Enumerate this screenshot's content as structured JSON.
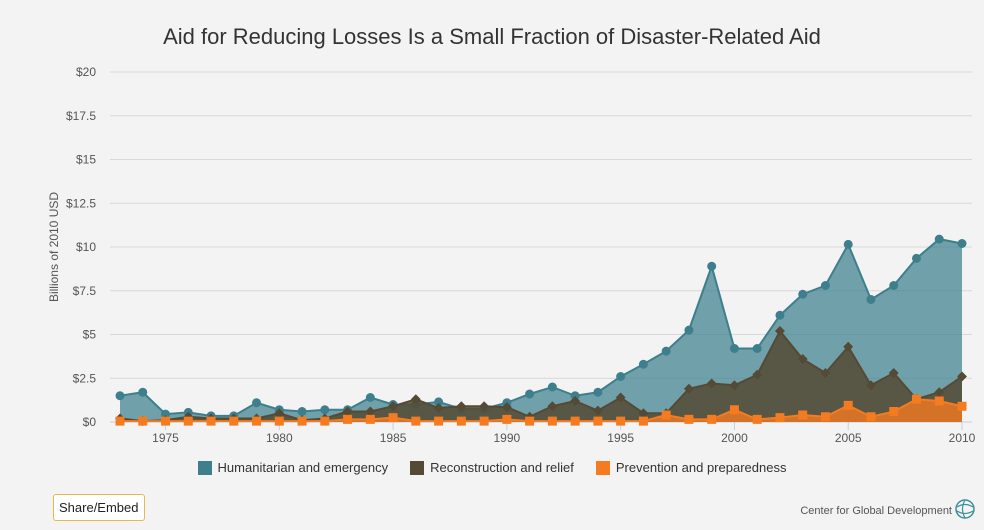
{
  "chart_data": {
    "type": "area",
    "title": "Aid for Reducing Losses Is a Small Fraction of Disaster-Related Aid",
    "ylabel": "Billions of 2010 USD",
    "xlabel": "",
    "ylim": [
      0,
      20
    ],
    "yticks": [
      "$0",
      "$2.5",
      "$5",
      "$7.5",
      "$10",
      "$12.5",
      "$15",
      "$17.5",
      "$20"
    ],
    "xticks": [
      "1975",
      "1980",
      "1985",
      "1990",
      "1995",
      "2000",
      "2005",
      "2010"
    ],
    "grid": true,
    "legend": "bottom",
    "x": [
      1973,
      1974,
      1975,
      1976,
      1977,
      1978,
      1979,
      1980,
      1981,
      1982,
      1983,
      1984,
      1985,
      1986,
      1987,
      1988,
      1989,
      1990,
      1991,
      1992,
      1993,
      1994,
      1995,
      1996,
      1997,
      1998,
      1999,
      2000,
      2001,
      2002,
      2003,
      2004,
      2005,
      2006,
      2007,
      2008,
      2009,
      2010
    ],
    "series": [
      {
        "name": "Humanitarian and emergency",
        "color": "#3d7f8c",
        "values": [
          1.5,
          1.7,
          0.45,
          0.55,
          0.35,
          0.35,
          1.1,
          0.7,
          0.6,
          0.7,
          0.7,
          1.4,
          1.0,
          1.0,
          1.15,
          0.75,
          0.75,
          1.1,
          1.6,
          2.0,
          1.5,
          1.7,
          2.6,
          3.3,
          4.05,
          5.25,
          8.9,
          4.2,
          4.2,
          6.1,
          7.3,
          7.8,
          10.15,
          7.0,
          7.8,
          9.35,
          10.45,
          10.2
        ]
      },
      {
        "name": "Reconstruction and relief",
        "color": "#544a35",
        "values": [
          0.2,
          0.05,
          0.1,
          0.3,
          0.2,
          0.2,
          0.2,
          0.5,
          0.1,
          0.2,
          0.6,
          0.6,
          0.9,
          1.3,
          0.8,
          0.9,
          0.9,
          0.85,
          0.3,
          0.9,
          1.2,
          0.65,
          1.4,
          0.5,
          0.5,
          1.9,
          2.2,
          2.1,
          2.7,
          5.2,
          3.6,
          2.8,
          4.3,
          2.1,
          2.8,
          1.3,
          1.7,
          2.6
        ]
      },
      {
        "name": "Prevention and preparedness",
        "color": "#f47b20",
        "values": [
          0.05,
          0.05,
          0.05,
          0.05,
          0.05,
          0.05,
          0.05,
          0.05,
          0.05,
          0.05,
          0.15,
          0.15,
          0.25,
          0.05,
          0.05,
          0.05,
          0.05,
          0.15,
          0.05,
          0.05,
          0.05,
          0.05,
          0.05,
          0.05,
          0.4,
          0.15,
          0.15,
          0.7,
          0.15,
          0.25,
          0.4,
          0.3,
          0.95,
          0.3,
          0.6,
          1.3,
          1.2,
          0.9
        ]
      }
    ]
  },
  "share_label": "Share/Embed",
  "credit": "Center for Global Development"
}
